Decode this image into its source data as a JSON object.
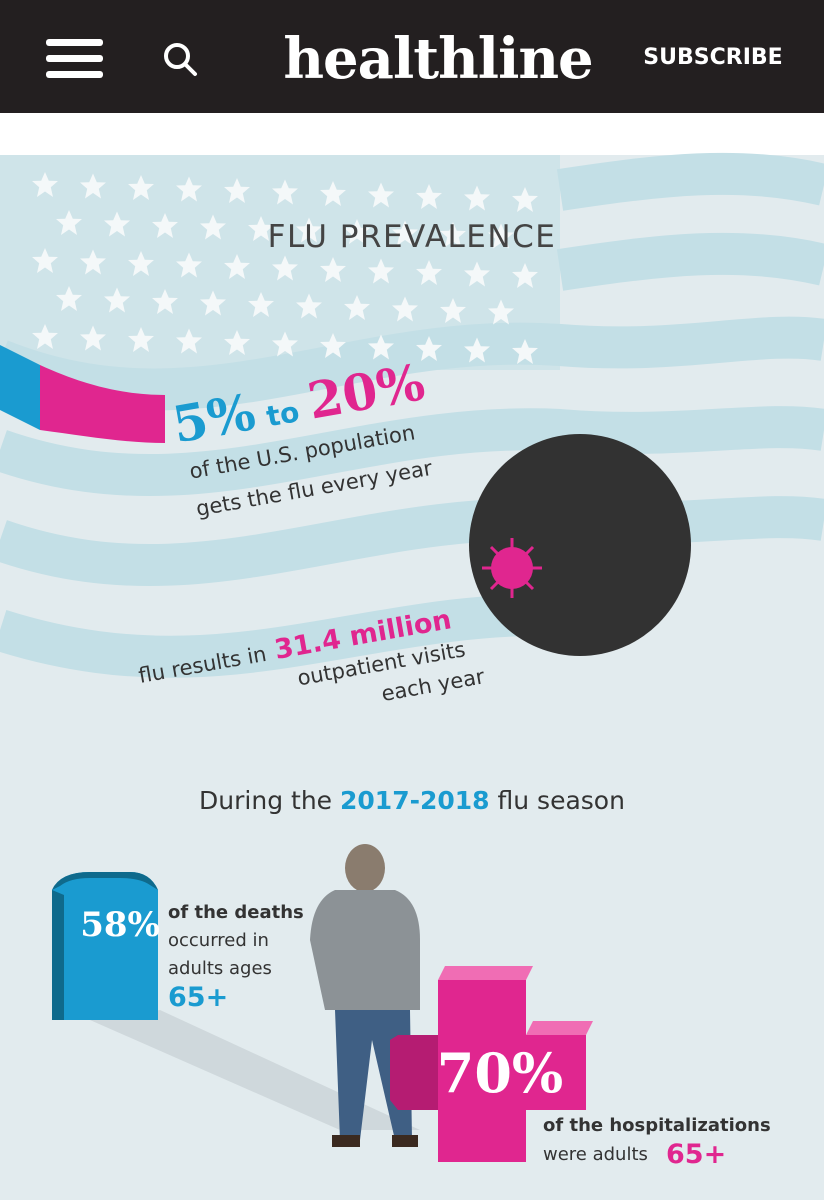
{
  "header": {
    "logo": "healthline",
    "subscribe": "SUBSCRIBE"
  },
  "infographic": {
    "title": "FLU PREVALENCE",
    "prevalence": {
      "low": "5%",
      "joiner": "to",
      "high": "20%",
      "line1": "of the U.S. population",
      "line2": "gets the flu every year"
    },
    "visits": {
      "lead": "flu results in",
      "amount": "31.4 million",
      "line2": "outpatient visits",
      "line3": "each year"
    },
    "season": {
      "before": "During the",
      "years": "2017-2018",
      "after": "flu season"
    },
    "deaths": {
      "percent": "58%",
      "line1": "of the deaths",
      "line2": "occurred in",
      "line3": "adults ages",
      "age": "65+"
    },
    "hospitalizations": {
      "percent": "70%",
      "line1": "of the hospitalizations",
      "line2": "were adults",
      "age": "65+"
    }
  }
}
